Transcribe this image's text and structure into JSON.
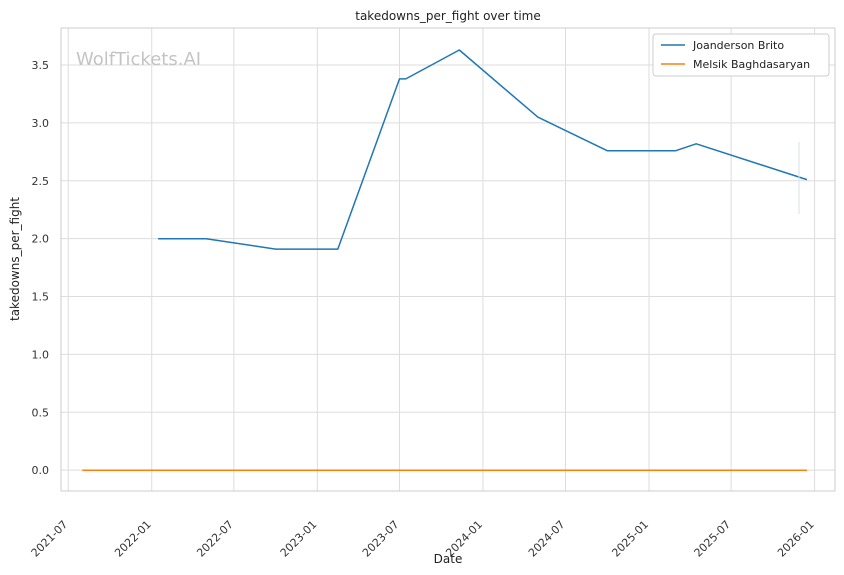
{
  "watermark": "WolfTickets.AI",
  "chart_data": {
    "type": "line",
    "title": "takedowns_per_fight over time",
    "xlabel": "Date",
    "ylabel": "takedowns_per_fight",
    "xlim": [
      "2021-06-15",
      "2026-02-15"
    ],
    "ylim": [
      -0.18,
      3.82
    ],
    "x_ticks": [
      "2021-07",
      "2022-01",
      "2022-07",
      "2023-01",
      "2023-07",
      "2024-01",
      "2024-07",
      "2025-01",
      "2025-07",
      "2026-01"
    ],
    "y_ticks": [
      "0.0",
      "0.5",
      "1.0",
      "1.5",
      "2.0",
      "2.5",
      "3.0",
      "3.5"
    ],
    "grid": true,
    "legend_position": "top-right",
    "series": [
      {
        "name": "Joanderson Brito",
        "color": "#1f77b4",
        "points": [
          {
            "x": "2022-01-15",
            "y": 2.0
          },
          {
            "x": "2022-05-01",
            "y": 2.0
          },
          {
            "x": "2022-10-01",
            "y": 1.91
          },
          {
            "x": "2023-02-15",
            "y": 1.91
          },
          {
            "x": "2023-07-01",
            "y": 3.38
          },
          {
            "x": "2023-07-15",
            "y": 3.38
          },
          {
            "x": "2023-11-10",
            "y": 3.63
          },
          {
            "x": "2024-05-01",
            "y": 3.05
          },
          {
            "x": "2024-10-01",
            "y": 2.76
          },
          {
            "x": "2025-03-01",
            "y": 2.76
          },
          {
            "x": "2025-04-15",
            "y": 2.82
          },
          {
            "x": "2025-12-15",
            "y": 2.51
          }
        ]
      },
      {
        "name": "Melsik Baghdasaryan",
        "color": "#ff7f0e",
        "points": [
          {
            "x": "2021-08-01",
            "y": 0.0
          },
          {
            "x": "2025-12-15",
            "y": 0.0
          }
        ]
      }
    ]
  }
}
